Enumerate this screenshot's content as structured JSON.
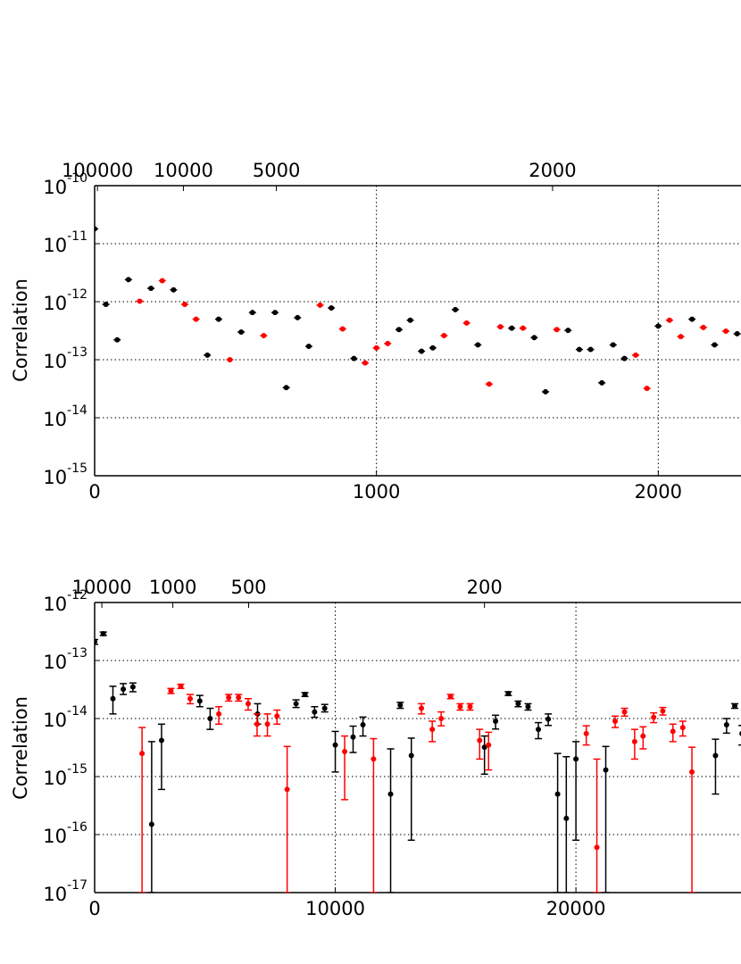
{
  "chart_data": [
    {
      "type": "scatter",
      "ylabel": "Correlation",
      "yscale": "log",
      "ylim": [
        1e-15,
        1e-10
      ],
      "yticks": [
        {
          "base": "10",
          "exp": "-15",
          "value": 1e-15
        },
        {
          "base": "10",
          "exp": "-14",
          "value": 1e-14
        },
        {
          "base": "10",
          "exp": "-13",
          "value": 1e-13
        },
        {
          "base": "10",
          "exp": "-12",
          "value": 1e-12
        },
        {
          "base": "10",
          "exp": "-11",
          "value": 1e-11
        },
        {
          "base": "10",
          "exp": "-10",
          "value": 1e-10
        }
      ],
      "xlim": [
        0,
        2300
      ],
      "xticks": [
        {
          "label": "0",
          "value": 0
        },
        {
          "label": "1000",
          "value": 1000
        },
        {
          "label": "2000",
          "value": 2000
        }
      ],
      "top_ticks": [
        {
          "label": "100000",
          "value": 10
        },
        {
          "label": "10000",
          "value": 315
        },
        {
          "label": "5000",
          "value": 645
        },
        {
          "label": "2000",
          "value": 1625
        }
      ],
      "grid": true,
      "series": [
        {
          "color": "#000000",
          "points": [
            [
              0,
              1.8e-11
            ],
            [
              40,
              9e-13
            ],
            [
              80,
              2.2e-13
            ],
            [
              120,
              2.4e-12
            ],
            [
              200,
              1.7e-12
            ],
            [
              280,
              1.6e-12
            ],
            [
              400,
              1.2e-13
            ],
            [
              440,
              5e-13
            ],
            [
              520,
              3e-13
            ],
            [
              560,
              6.5e-13
            ],
            [
              640,
              6.5e-13
            ],
            [
              680,
              3.3e-14
            ],
            [
              720,
              5.3e-13
            ],
            [
              760,
              1.7e-13
            ],
            [
              840,
              7.8e-13
            ],
            [
              920,
              1.05e-13
            ],
            [
              1080,
              3.3e-13
            ],
            [
              1120,
              4.8e-13
            ],
            [
              1160,
              1.4e-13
            ],
            [
              1200,
              1.6e-13
            ],
            [
              1280,
              7.3e-13
            ],
            [
              1360,
              1.8e-13
            ],
            [
              1480,
              3.5e-13
            ],
            [
              1560,
              2.4e-13
            ],
            [
              1600,
              2.8e-14
            ],
            [
              1680,
              3.2e-13
            ],
            [
              1720,
              1.5e-13
            ],
            [
              1760,
              1.5e-13
            ],
            [
              1800,
              4e-14
            ],
            [
              1840,
              1.8e-13
            ],
            [
              1880,
              1.05e-13
            ],
            [
              2000,
              3.8e-13
            ],
            [
              2120,
              5e-13
            ],
            [
              2200,
              1.8e-13
            ],
            [
              2280,
              2.8e-13
            ]
          ]
        },
        {
          "color": "#ff0000",
          "points": [
            [
              160,
              1.02e-12
            ],
            [
              240,
              2.3e-12
            ],
            [
              320,
              9e-13
            ],
            [
              360,
              5e-13
            ],
            [
              480,
              1e-13
            ],
            [
              600,
              2.6e-13
            ],
            [
              800,
              8.7e-13
            ],
            [
              880,
              3.4e-13
            ],
            [
              960,
              8.8e-14
            ],
            [
              1000,
              1.6e-13
            ],
            [
              1040,
              1.9e-13
            ],
            [
              1240,
              2.6e-13
            ],
            [
              1320,
              4.3e-13
            ],
            [
              1400,
              3.8e-14
            ],
            [
              1440,
              3.7e-13
            ],
            [
              1520,
              3.5e-13
            ],
            [
              1640,
              3.3e-13
            ],
            [
              1920,
              1.2e-13
            ],
            [
              1960,
              3.2e-14
            ],
            [
              2040,
              4.8e-13
            ],
            [
              2080,
              2.5e-13
            ],
            [
              2160,
              3.6e-13
            ],
            [
              2240,
              3.1e-13
            ]
          ]
        }
      ]
    },
    {
      "type": "scatter",
      "ylabel": "Correlation",
      "yscale": "log",
      "ylim": [
        1e-17,
        1e-12
      ],
      "yticks": [
        {
          "base": "10",
          "exp": "-17",
          "value": 1e-17
        },
        {
          "base": "10",
          "exp": "-16",
          "value": 1e-16
        },
        {
          "base": "10",
          "exp": "-15",
          "value": 1e-15
        },
        {
          "base": "10",
          "exp": "-14",
          "value": 1e-14
        },
        {
          "base": "10",
          "exp": "-13",
          "value": 1e-13
        },
        {
          "base": "10",
          "exp": "-12",
          "value": 1e-12
        }
      ],
      "xlim": [
        0,
        26900
      ],
      "xticks": [
        {
          "label": "0",
          "value": 0
        },
        {
          "label": "10000",
          "value": 10000
        },
        {
          "label": "20000",
          "value": 20000
        }
      ],
      "top_ticks": [
        {
          "label": "10000",
          "value": 300
        },
        {
          "label": "1000",
          "value": 3250
        },
        {
          "label": "500",
          "value": 6400
        },
        {
          "label": "200",
          "value": 16200
        }
      ],
      "grid": true,
      "series": [
        {
          "color": "#000000",
          "points": [
            [
              0,
              2.1e-13,
              2.3e-13,
              1.9e-13
            ],
            [
              360,
              2.9e-13,
              3.1e-13,
              2.7e-13
            ],
            [
              760,
              2.2e-14,
              3.6e-14,
              1.2e-14
            ],
            [
              1190,
              3.2e-14,
              4e-14,
              2.6e-14
            ],
            [
              1590,
              3.5e-14,
              4.1e-14,
              2.9e-14
            ],
            [
              2370,
              1.5e-16,
              4e-15,
              1e-17
            ],
            [
              2780,
              4.2e-15,
              8e-15,
              6e-16
            ],
            [
              4370,
              2e-14,
              2.5e-14,
              1.6e-14
            ],
            [
              4800,
              1e-14,
              1.5e-14,
              6.5e-15
            ],
            [
              6770,
              1.2e-14,
              1.8e-14,
              8e-15
            ],
            [
              8370,
              1.8e-14,
              2.1e-14,
              1.55e-14
            ],
            [
              8740,
              2.6e-14,
              2.8e-14,
              2.4e-14
            ],
            [
              9140,
              1.3e-14,
              1.6e-14,
              1.05e-14
            ],
            [
              9560,
              1.5e-14,
              1.75e-14,
              1.3e-14
            ],
            [
              10000,
              3.5e-15,
              6e-15,
              1.2e-15
            ],
            [
              10740,
              4.8e-15,
              7.4e-15,
              2.6e-15
            ],
            [
              11150,
              7.8e-15,
              1.06e-14,
              5e-15
            ],
            [
              12300,
              5e-16,
              3e-15,
              1e-17
            ],
            [
              12700,
              1.7e-14,
              1.9e-14,
              1.5e-14
            ],
            [
              13160,
              2.3e-15,
              4.6e-15,
              8e-17
            ],
            [
              16200,
              3.2e-15,
              5e-15,
              1.1e-15
            ],
            [
              16660,
              9e-15,
              1.14e-14,
              6.6e-15
            ],
            [
              17190,
              2.7e-14,
              2.9e-14,
              2.5e-14
            ],
            [
              17600,
              1.8e-14,
              2e-14,
              1.6e-14
            ],
            [
              18010,
              1.6e-14,
              1.8e-14,
              1.4e-14
            ],
            [
              18440,
              6.5e-15,
              8.5e-15,
              4.5e-15
            ],
            [
              18850,
              9.8e-15,
              1.2e-14,
              7.6e-15
            ],
            [
              19240,
              5e-16,
              2.5e-15,
              1e-17
            ],
            [
              19600,
              1.9e-16,
              2.2e-15,
              1e-17
            ],
            [
              20000,
              2e-15,
              4e-15,
              8e-17
            ],
            [
              21240,
              1.3e-15,
              3.3e-15,
              1e-17
            ],
            [
              25800,
              2.3e-15,
              4.4e-15,
              5e-16
            ],
            [
              26260,
              7.8e-15,
              1e-14,
              5.6e-15
            ],
            [
              26600,
              1.65e-14,
              1.8e-14,
              1.5e-14
            ],
            [
              26900,
              5.5e-15,
              7.6e-15,
              3.5e-15
            ],
            [
              27300,
              8.5e-15,
              1.07e-14,
              6.5e-15
            ]
          ]
        },
        {
          "color": "#ff0000",
          "points": [
            [
              1970,
              2.5e-15,
              7e-15,
              1e-17
            ],
            [
              3170,
              3e-14,
              3.3e-14,
              2.7e-14
            ],
            [
              3580,
              3.6e-14,
              3.9e-14,
              3.3e-14
            ],
            [
              3970,
              2.2e-14,
              2.6e-14,
              1.8e-14
            ],
            [
              5160,
              1.2e-14,
              1.6e-14,
              8e-15
            ],
            [
              5570,
              2.3e-14,
              2.6e-14,
              2e-14
            ],
            [
              5980,
              2.3e-14,
              2.6e-14,
              2e-14
            ],
            [
              6380,
              1.8e-14,
              2.2e-14,
              1.4e-14
            ],
            [
              6750,
              8e-15,
              1.2e-14,
              5e-15
            ],
            [
              7180,
              8e-15,
              1.2e-14,
              5e-15
            ],
            [
              7580,
              1.1e-14,
              1.4e-14,
              8e-15
            ],
            [
              8000,
              6e-16,
              3.3e-15,
              1e-17
            ],
            [
              10390,
              2.7e-15,
              5e-15,
              4e-16
            ],
            [
              11590,
              2e-15,
              4.5e-15,
              1e-17
            ],
            [
              13580,
              1.5e-14,
              1.8e-14,
              1.2e-14
            ],
            [
              14030,
              6.5e-15,
              9e-15,
              4e-15
            ],
            [
              14400,
              1e-14,
              1.3e-14,
              7.5e-15
            ],
            [
              14790,
              2.4e-14,
              2.6e-14,
              2.2e-14
            ],
            [
              15190,
              1.6e-14,
              1.8e-14,
              1.4e-14
            ],
            [
              15600,
              1.6e-14,
              1.8e-14,
              1.4e-14
            ],
            [
              16000,
              4.2e-15,
              6.5e-15,
              2e-15
            ],
            [
              16370,
              3.5e-15,
              5.8e-15,
              1.3e-15
            ],
            [
              20430,
              5.5e-15,
              7.5e-15,
              3.5e-15
            ],
            [
              20870,
              6e-17,
              2e-15,
              1e-17
            ],
            [
              21630,
              9e-15,
              1.1e-14,
              7e-15
            ],
            [
              22020,
              1.3e-14,
              1.5e-14,
              1.1e-14
            ],
            [
              22440,
              4e-15,
              6.5e-15,
              2e-15
            ],
            [
              22790,
              5e-15,
              7.2e-15,
              3e-15
            ],
            [
              23230,
              1.05e-14,
              1.25e-14,
              8.5e-15
            ],
            [
              23610,
              1.35e-14,
              1.55e-14,
              1.15e-14
            ],
            [
              24030,
              6e-15,
              8e-15,
              4e-15
            ],
            [
              24440,
              7e-15,
              9e-15,
              5e-15
            ],
            [
              24820,
              1.2e-15,
              3.2e-15,
              1e-17
            ]
          ]
        }
      ]
    }
  ]
}
